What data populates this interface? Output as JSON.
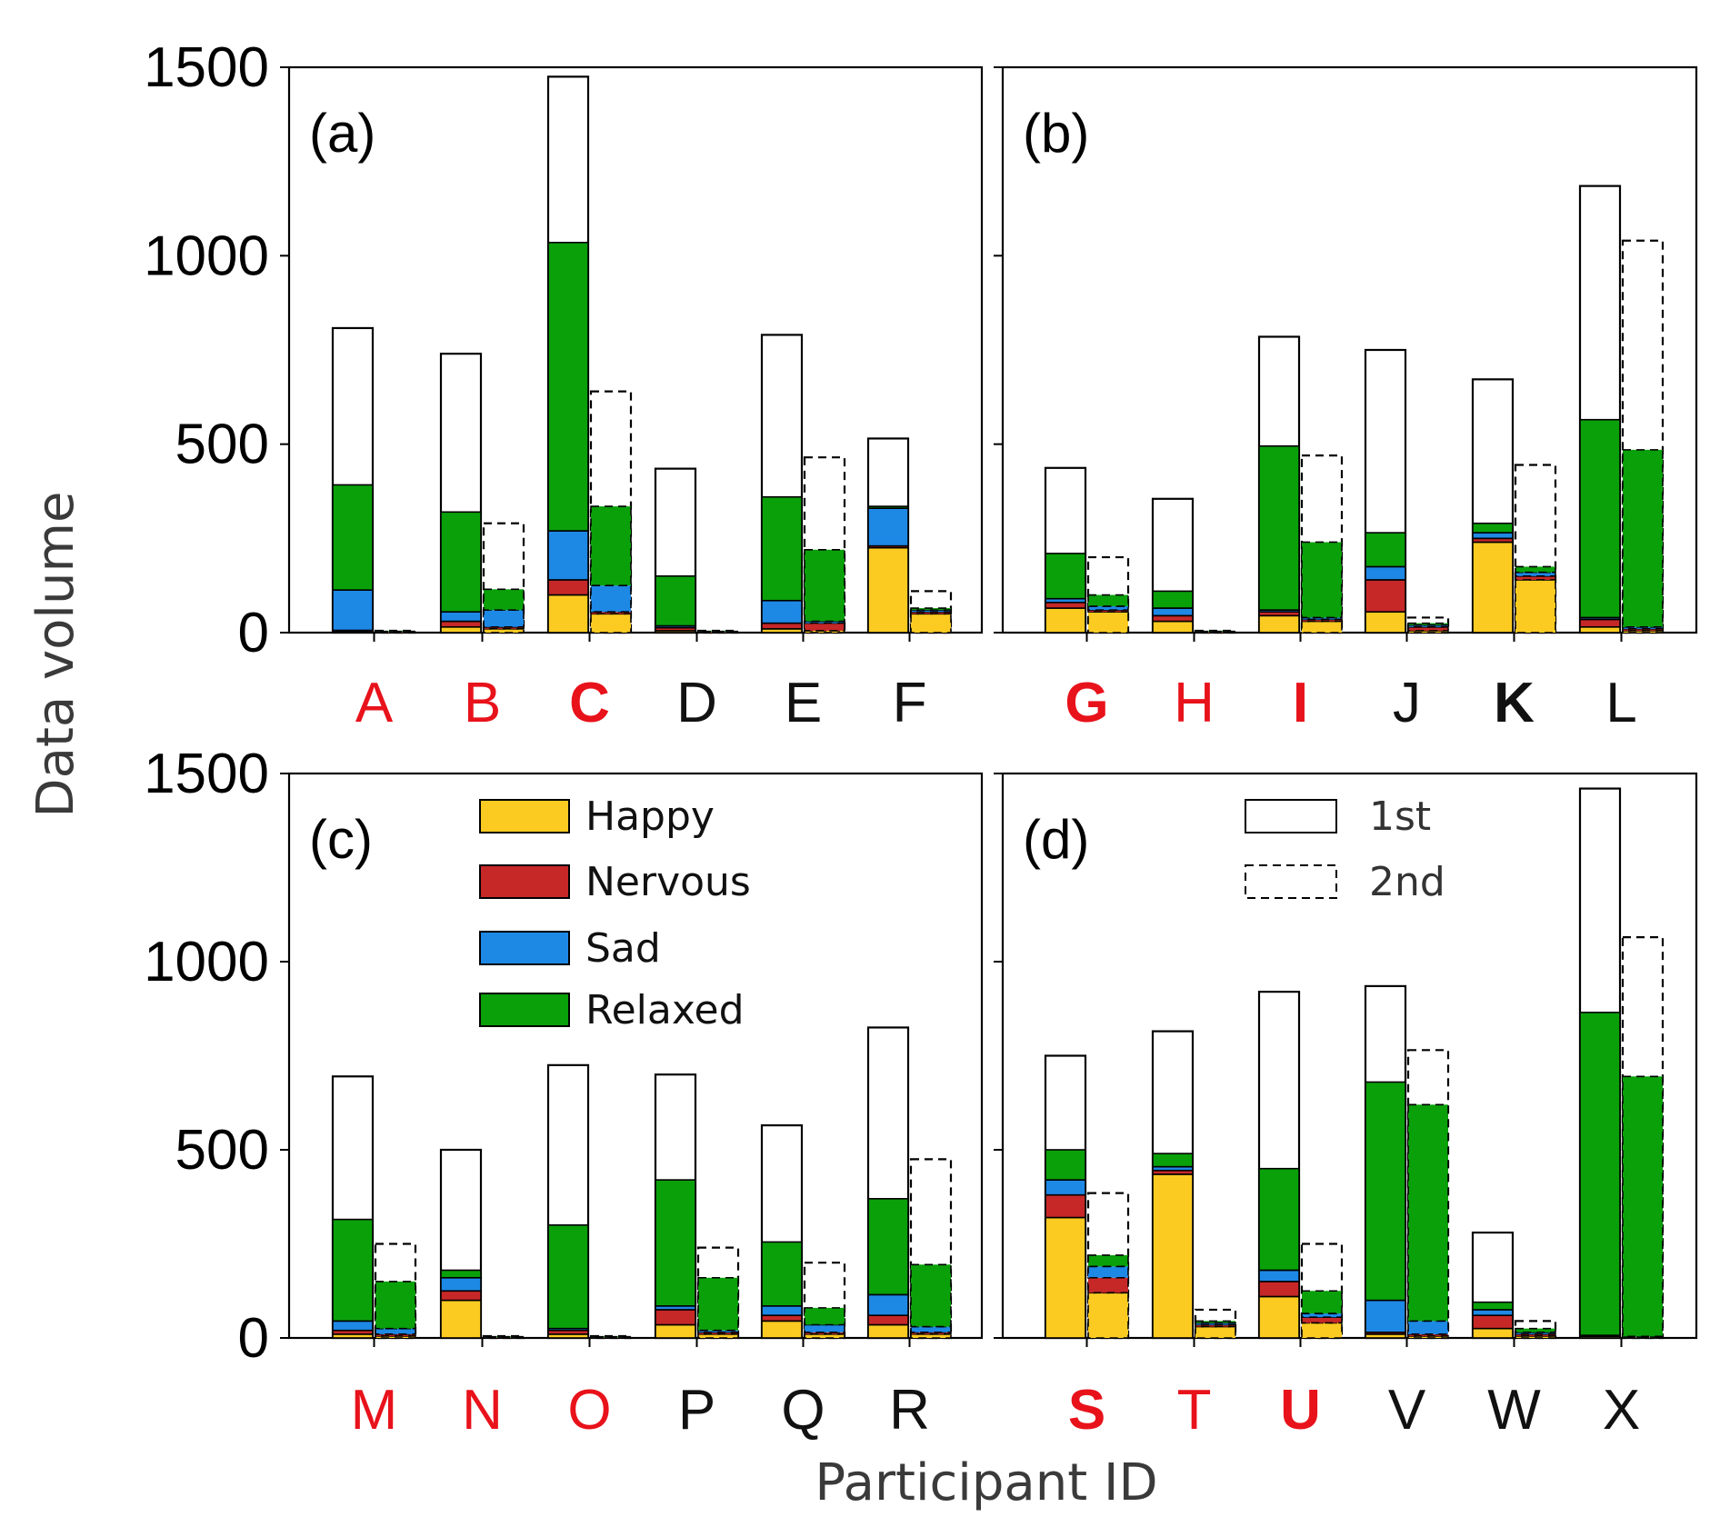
{
  "chart_data": {
    "type": "bar",
    "subtype": "grouped-stacked",
    "ylabel": "Data volume",
    "xlabel": "Participant ID",
    "ylim": [
      0,
      1500
    ],
    "yticks": [
      0,
      500,
      1000,
      1500
    ],
    "stack_order": [
      "Happy",
      "Nervous",
      "Sad",
      "Relaxed"
    ],
    "emotion_legend": [
      {
        "name": "Happy",
        "color": "#FCCB22"
      },
      {
        "name": "Nervous",
        "color": "#C62828"
      },
      {
        "name": "Sad",
        "color": "#1E88E5"
      },
      {
        "name": "Relaxed",
        "color": "#0AA00A"
      }
    ],
    "session_legend": [
      {
        "name": "1st",
        "style": "solid"
      },
      {
        "name": "2nd",
        "style": "dashed"
      }
    ],
    "colors": {
      "red_label": "#E8121B",
      "black_label": "#111111"
    },
    "panels": [
      {
        "tag": "(a)",
        "participants": [
          {
            "id": "A",
            "color": "red",
            "bold": false,
            "first": {
              "total": 808,
              "happy": 3,
              "nervous": 3,
              "sad": 107,
              "relaxed": 279
            },
            "second": {
              "total": 5,
              "happy": 2,
              "nervous": 1,
              "sad": 1,
              "relaxed": 1
            }
          },
          {
            "id": "B",
            "color": "red",
            "bold": false,
            "first": {
              "total": 740,
              "happy": 15,
              "nervous": 15,
              "sad": 25,
              "relaxed": 265
            },
            "second": {
              "total": 290,
              "happy": 10,
              "nervous": 5,
              "sad": 45,
              "relaxed": 55
            }
          },
          {
            "id": "C",
            "color": "red",
            "bold": true,
            "first": {
              "total": 1475,
              "happy": 100,
              "nervous": 40,
              "sad": 130,
              "relaxed": 765
            },
            "second": {
              "total": 640,
              "happy": 50,
              "nervous": 5,
              "sad": 70,
              "relaxed": 210
            }
          },
          {
            "id": "D",
            "color": "black",
            "bold": false,
            "first": {
              "total": 435,
              "happy": 5,
              "nervous": 8,
              "sad": 5,
              "relaxed": 132
            },
            "second": {
              "total": 5,
              "happy": 2,
              "nervous": 1,
              "sad": 1,
              "relaxed": 1
            }
          },
          {
            "id": "E",
            "color": "black",
            "bold": false,
            "first": {
              "total": 790,
              "happy": 10,
              "nervous": 15,
              "sad": 60,
              "relaxed": 275
            },
            "second": {
              "total": 465,
              "happy": 5,
              "nervous": 20,
              "sad": 5,
              "relaxed": 190
            }
          },
          {
            "id": "F",
            "color": "black",
            "bold": false,
            "first": {
              "total": 515,
              "happy": 225,
              "nervous": 5,
              "sad": 100,
              "relaxed": 5
            },
            "second": {
              "total": 110,
              "happy": 50,
              "nervous": 5,
              "sad": 5,
              "relaxed": 5
            }
          }
        ]
      },
      {
        "tag": "(b)",
        "participants": [
          {
            "id": "G",
            "color": "red",
            "bold": true,
            "first": {
              "total": 437,
              "happy": 65,
              "nervous": 15,
              "sad": 10,
              "relaxed": 120
            },
            "second": {
              "total": 200,
              "happy": 55,
              "nervous": 5,
              "sad": 10,
              "relaxed": 30
            }
          },
          {
            "id": "H",
            "color": "red",
            "bold": false,
            "first": {
              "total": 355,
              "happy": 30,
              "nervous": 15,
              "sad": 20,
              "relaxed": 45
            },
            "second": {
              "total": 5,
              "happy": 2,
              "nervous": 1,
              "sad": 1,
              "relaxed": 1
            }
          },
          {
            "id": "I",
            "color": "red",
            "bold": true,
            "first": {
              "total": 785,
              "happy": 45,
              "nervous": 10,
              "sad": 5,
              "relaxed": 435
            },
            "second": {
              "total": 470,
              "happy": 30,
              "nervous": 5,
              "sad": 5,
              "relaxed": 200
            }
          },
          {
            "id": "J",
            "color": "black",
            "bold": false,
            "first": {
              "total": 750,
              "happy": 55,
              "nervous": 85,
              "sad": 35,
              "relaxed": 90
            },
            "second": {
              "total": 40,
              "happy": 5,
              "nervous": 10,
              "sad": 5,
              "relaxed": 5
            }
          },
          {
            "id": "K",
            "color": "black",
            "bold": true,
            "first": {
              "total": 672,
              "happy": 240,
              "nervous": 10,
              "sad": 15,
              "relaxed": 25
            },
            "second": {
              "total": 445,
              "happy": 140,
              "nervous": 10,
              "sad": 10,
              "relaxed": 15
            }
          },
          {
            "id": "L",
            "color": "black",
            "bold": false,
            "first": {
              "total": 1185,
              "happy": 15,
              "nervous": 20,
              "sad": 5,
              "relaxed": 525
            },
            "second": {
              "total": 1040,
              "happy": 5,
              "nervous": 5,
              "sad": 5,
              "relaxed": 470
            }
          }
        ]
      },
      {
        "tag": "(c)",
        "participants": [
          {
            "id": "M",
            "color": "red",
            "bold": false,
            "first": {
              "total": 695,
              "happy": 10,
              "nervous": 10,
              "sad": 25,
              "relaxed": 270
            },
            "second": {
              "total": 250,
              "happy": 5,
              "nervous": 5,
              "sad": 15,
              "relaxed": 125
            }
          },
          {
            "id": "N",
            "color": "red",
            "bold": false,
            "first": {
              "total": 500,
              "happy": 100,
              "nervous": 25,
              "sad": 35,
              "relaxed": 20
            },
            "second": {
              "total": 5,
              "happy": 2,
              "nervous": 1,
              "sad": 1,
              "relaxed": 1
            }
          },
          {
            "id": "O",
            "color": "red",
            "bold": false,
            "first": {
              "total": 725,
              "happy": 10,
              "nervous": 10,
              "sad": 5,
              "relaxed": 275
            },
            "second": {
              "total": 5,
              "happy": 2,
              "nervous": 1,
              "sad": 1,
              "relaxed": 1
            }
          },
          {
            "id": "P",
            "color": "black",
            "bold": false,
            "first": {
              "total": 700,
              "happy": 35,
              "nervous": 40,
              "sad": 10,
              "relaxed": 335
            },
            "second": {
              "total": 240,
              "happy": 10,
              "nervous": 5,
              "sad": 5,
              "relaxed": 140
            }
          },
          {
            "id": "Q",
            "color": "black",
            "bold": false,
            "first": {
              "total": 565,
              "happy": 45,
              "nervous": 15,
              "sad": 25,
              "relaxed": 170
            },
            "second": {
              "total": 200,
              "happy": 10,
              "nervous": 5,
              "sad": 20,
              "relaxed": 45
            }
          },
          {
            "id": "R",
            "color": "black",
            "bold": false,
            "first": {
              "total": 825,
              "happy": 35,
              "nervous": 25,
              "sad": 55,
              "relaxed": 255
            },
            "second": {
              "total": 475,
              "happy": 10,
              "nervous": 5,
              "sad": 15,
              "relaxed": 165
            }
          }
        ]
      },
      {
        "tag": "(d)",
        "participants": [
          {
            "id": "S",
            "color": "red",
            "bold": true,
            "first": {
              "total": 750,
              "happy": 320,
              "nervous": 60,
              "sad": 40,
              "relaxed": 80
            },
            "second": {
              "total": 385,
              "happy": 120,
              "nervous": 40,
              "sad": 30,
              "relaxed": 30
            }
          },
          {
            "id": "T",
            "color": "red",
            "bold": false,
            "first": {
              "total": 815,
              "happy": 435,
              "nervous": 10,
              "sad": 10,
              "relaxed": 35
            },
            "second": {
              "total": 75,
              "happy": 30,
              "nervous": 5,
              "sad": 5,
              "relaxed": 5
            }
          },
          {
            "id": "U",
            "color": "red",
            "bold": true,
            "first": {
              "total": 920,
              "happy": 110,
              "nervous": 40,
              "sad": 30,
              "relaxed": 270
            },
            "second": {
              "total": 250,
              "happy": 40,
              "nervous": 15,
              "sad": 10,
              "relaxed": 60
            }
          },
          {
            "id": "V",
            "color": "black",
            "bold": false,
            "first": {
              "total": 935,
              "happy": 10,
              "nervous": 5,
              "sad": 85,
              "relaxed": 580
            },
            "second": {
              "total": 765,
              "happy": 5,
              "nervous": 5,
              "sad": 35,
              "relaxed": 575
            }
          },
          {
            "id": "W",
            "color": "black",
            "bold": false,
            "first": {
              "total": 280,
              "happy": 25,
              "nervous": 35,
              "sad": 15,
              "relaxed": 20
            },
            "second": {
              "total": 45,
              "happy": 5,
              "nervous": 5,
              "sad": 5,
              "relaxed": 10
            }
          },
          {
            "id": "X",
            "color": "black",
            "bold": false,
            "first": {
              "total": 1460,
              "happy": 5,
              "nervous": 1,
              "sad": 1,
              "relaxed": 858
            },
            "second": {
              "total": 1065,
              "happy": 2,
              "nervous": 1,
              "sad": 1,
              "relaxed": 691
            }
          }
        ]
      }
    ]
  }
}
